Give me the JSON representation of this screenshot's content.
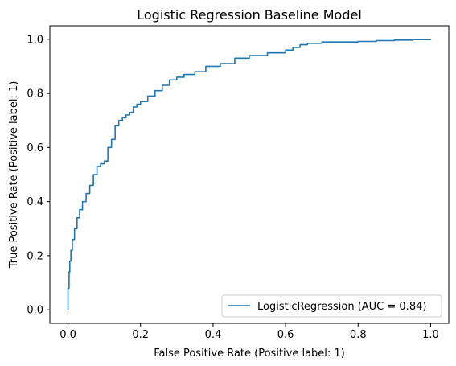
{
  "chart_data": {
    "type": "line",
    "title": "Logistic Regression Baseline Model",
    "xlabel": "False Positive Rate (Positive label: 1)",
    "ylabel": "True Positive Rate (Positive label: 1)",
    "xlim": [
      -0.05,
      1.05
    ],
    "ylim": [
      -0.05,
      1.05
    ],
    "xticks": [
      "0.0",
      "0.2",
      "0.4",
      "0.6",
      "0.8",
      "1.0"
    ],
    "yticks": [
      "0.0",
      "0.2",
      "0.4",
      "0.6",
      "0.8",
      "1.0"
    ],
    "grid": false,
    "legend_position": "lower right",
    "series": [
      {
        "name": "LogisticRegression (AUC = 0.84)",
        "color": "#1f77b4",
        "x": [
          0.0,
          0.0,
          0.003,
          0.005,
          0.008,
          0.012,
          0.018,
          0.025,
          0.032,
          0.04,
          0.05,
          0.06,
          0.07,
          0.08,
          0.09,
          0.1,
          0.11,
          0.12,
          0.13,
          0.14,
          0.15,
          0.16,
          0.17,
          0.18,
          0.19,
          0.2,
          0.22,
          0.24,
          0.26,
          0.28,
          0.3,
          0.32,
          0.35,
          0.38,
          0.42,
          0.46,
          0.5,
          0.55,
          0.6,
          0.62,
          0.64,
          0.66,
          0.7,
          0.75,
          0.8,
          0.85,
          0.9,
          0.95,
          1.0
        ],
        "y": [
          0.0,
          0.08,
          0.14,
          0.18,
          0.22,
          0.26,
          0.3,
          0.34,
          0.37,
          0.4,
          0.43,
          0.46,
          0.5,
          0.53,
          0.54,
          0.55,
          0.6,
          0.63,
          0.68,
          0.7,
          0.71,
          0.72,
          0.73,
          0.75,
          0.76,
          0.77,
          0.79,
          0.81,
          0.83,
          0.85,
          0.86,
          0.87,
          0.88,
          0.9,
          0.91,
          0.93,
          0.94,
          0.95,
          0.96,
          0.97,
          0.98,
          0.985,
          0.99,
          0.99,
          0.992,
          0.995,
          0.997,
          0.999,
          1.0
        ]
      }
    ]
  }
}
